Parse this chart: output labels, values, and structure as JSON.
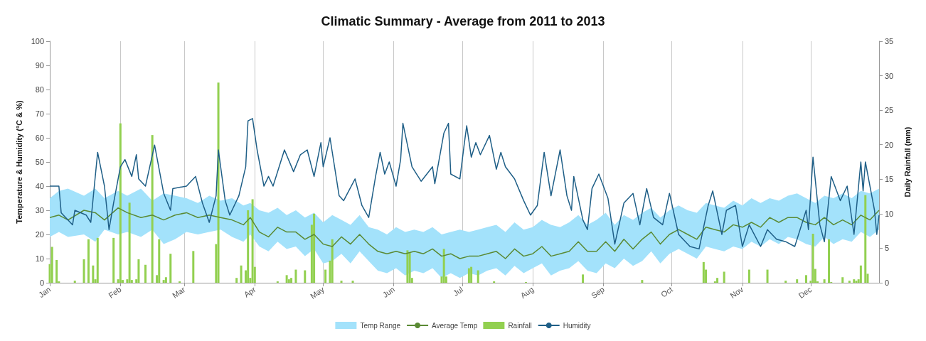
{
  "chart_data": {
    "type": "line",
    "title": "Climatic Summary - Average from 2011 to 2013",
    "ylabel": "Temperature & Humidity (°C & %)",
    "y2label": "Daily Rainfall (mm)",
    "xlim": [
      "--01-01",
      "--12-31"
    ],
    "xticks": [
      {
        "value": "--01-01",
        "label": "Jan"
      },
      {
        "value": "--02-01",
        "label": "Feb"
      },
      {
        "value": "--03-01",
        "label": "Mar"
      },
      {
        "value": "--04-01",
        "label": "Apr"
      },
      {
        "value": "--05-01",
        "label": "May"
      },
      {
        "value": "--06-01",
        "label": "Jun"
      },
      {
        "value": "--07-01",
        "label": "Jul"
      },
      {
        "value": "--08-01",
        "label": "Aug"
      },
      {
        "value": "--09-01",
        "label": "Sep"
      },
      {
        "value": "--10-01",
        "label": "Oct"
      },
      {
        "value": "--11-01",
        "label": "Nov"
      },
      {
        "value": "--12-01",
        "label": "Dec"
      }
    ],
    "ylim": [
      0,
      100
    ],
    "yticks": [
      0,
      10,
      20,
      30,
      40,
      50,
      60,
      70,
      80,
      90,
      100
    ],
    "y2lim": [
      0,
      35
    ],
    "y2ticks": [
      0,
      5,
      10,
      15,
      20,
      25,
      30,
      35
    ],
    "grid": "x",
    "legend": "bottom",
    "line_style": "solid",
    "marker": "none",
    "series": [
      {
        "name": "Temp Range",
        "type": "area",
        "color": "#a3e2fb"
      },
      {
        "name": "Average Temp",
        "color": "#5a8a34",
        "x": [
          "--01-01",
          "--01-05",
          "--01-09",
          "--01-16",
          "--01-21",
          "--01-25",
          "--01-31",
          "--02-04",
          "--02-10",
          "--02-15",
          "--02-20",
          "--02-25",
          "--03-02",
          "--03-07",
          "--03-12",
          "--03-17",
          "--03-22",
          "--03-27",
          "--03-30",
          "--04-03",
          "--04-07",
          "--04-11",
          "--04-15",
          "--04-19",
          "--04-23",
          "--04-27",
          "--05-01",
          "--05-05",
          "--05-09",
          "--05-13",
          "--05-17",
          "--05-21",
          "--05-25",
          "--05-29",
          "--06-02",
          "--06-06",
          "--06-10",
          "--06-14",
          "--06-18",
          "--06-22",
          "--06-26",
          "--06-30",
          "--07-04",
          "--07-08",
          "--07-12",
          "--07-16",
          "--07-20",
          "--07-24",
          "--07-28",
          "--08-01",
          "--08-05",
          "--08-09",
          "--08-13",
          "--08-17",
          "--08-21",
          "--08-25",
          "--08-29",
          "--09-02",
          "--09-06",
          "--09-10",
          "--09-14",
          "--09-18",
          "--09-22",
          "--09-26",
          "--09-30",
          "--10-04",
          "--10-08",
          "--10-12",
          "--10-16",
          "--10-20",
          "--10-24",
          "--10-28",
          "--11-01",
          "--11-05",
          "--11-09",
          "--11-13",
          "--11-17",
          "--11-21",
          "--11-25",
          "--11-29",
          "--12-03",
          "--12-07",
          "--12-11",
          "--12-15",
          "--12-19",
          "--12-23",
          "--12-27",
          "--12-31"
        ],
        "lower": [
          19,
          21,
          19,
          20,
          17,
          22,
          20,
          21,
          19,
          22,
          16,
          18,
          21,
          20,
          21,
          22,
          19,
          17,
          20,
          15,
          13,
          17,
          14,
          15,
          11,
          14,
          8,
          9,
          12,
          8,
          13,
          9,
          5,
          4,
          6,
          3,
          5,
          4,
          6,
          2,
          4,
          2,
          4,
          3,
          5,
          6,
          3,
          7,
          4,
          6,
          8,
          3,
          5,
          6,
          9,
          5,
          4,
          8,
          6,
          10,
          7,
          9,
          13,
          8,
          12,
          14,
          12,
          10,
          15,
          14,
          13,
          15,
          14,
          17,
          15,
          18,
          16,
          19,
          18,
          16,
          15,
          19,
          16,
          18,
          17,
          21,
          19,
          22
        ],
        "upper": [
          35,
          38,
          39,
          36,
          39,
          35,
          38,
          36,
          39,
          34,
          37,
          36,
          35,
          33,
          36,
          34,
          35,
          32,
          33,
          30,
          29,
          31,
          28,
          30,
          27,
          29,
          25,
          28,
          26,
          24,
          28,
          23,
          22,
          20,
          23,
          21,
          22,
          21,
          23,
          20,
          21,
          22,
          21,
          22,
          23,
          24,
          21,
          25,
          22,
          23,
          26,
          24,
          23,
          25,
          28,
          24,
          26,
          29,
          24,
          28,
          26,
          29,
          31,
          27,
          30,
          32,
          30,
          29,
          33,
          32,
          31,
          34,
          32,
          35,
          33,
          35,
          34,
          36,
          37,
          35,
          33,
          36,
          35,
          37,
          35,
          38,
          37,
          39
        ],
        "values": [
          27,
          28,
          26,
          30,
          29,
          26,
          31,
          29,
          27,
          28,
          26,
          28,
          29,
          27,
          28,
          27,
          26,
          24,
          27,
          21,
          19,
          23,
          21,
          21,
          18,
          20,
          16,
          15,
          19,
          16,
          20,
          16,
          13,
          12,
          13,
          12,
          13,
          12,
          14,
          11,
          12,
          10,
          11,
          11,
          12,
          13,
          10,
          14,
          11,
          12,
          15,
          11,
          12,
          13,
          17,
          13,
          13,
          17,
          13,
          18,
          14,
          18,
          21,
          16,
          20,
          22,
          20,
          18,
          23,
          22,
          21,
          24,
          23,
          25,
          23,
          27,
          25,
          27,
          27,
          25,
          24,
          27,
          24,
          26,
          24,
          28,
          26,
          30
        ]
      },
      {
        "name": "Rainfall",
        "type": "bar",
        "axis": "y2",
        "color": "#92d050",
        "x": [
          "--01-01",
          "--01-02",
          "--01-04",
          "--01-05",
          "--01-12",
          "--01-16",
          "--01-18",
          "--01-20",
          "--01-21",
          "--01-22",
          "--01-29",
          "--01-31",
          "--02-01",
          "--02-02",
          "--02-04",
          "--02-05",
          "--02-06",
          "--02-08",
          "--02-09",
          "--02-12",
          "--02-15",
          "--02-17",
          "--02-18",
          "--02-20",
          "--02-21",
          "--02-23",
          "--02-27",
          "--03-05",
          "--03-15",
          "--03-16",
          "--03-24",
          "--03-26",
          "--03-28",
          "--03-29",
          "--03-30",
          "--03-31",
          "--04-01",
          "--04-11",
          "--04-15",
          "--04-16",
          "--04-17",
          "--04-19",
          "--04-23",
          "--04-26",
          "--04-27",
          "--05-02",
          "--05-04",
          "--05-05",
          "--05-09",
          "--05-14",
          "--06-07",
          "--06-08",
          "--06-09",
          "--06-22",
          "--06-23",
          "--06-24",
          "--07-04",
          "--07-05",
          "--07-08",
          "--07-15",
          "--07-29",
          "--08-23",
          "--09-18",
          "--10-15",
          "--10-16",
          "--10-20",
          "--10-21",
          "--10-24",
          "--11-04",
          "--11-12",
          "--11-20",
          "--11-25",
          "--11-29",
          "--12-01",
          "--12-02",
          "--12-03",
          "--12-04",
          "--12-07",
          "--12-09",
          "--12-10",
          "--12-15",
          "--12-18",
          "--12-20",
          "--12-21",
          "--12-22",
          "--12-23",
          "--12-25",
          "--12-26"
        ],
        "values": [
          2.7,
          5.2,
          3.3,
          0.2,
          0.3,
          3.4,
          6.3,
          2.5,
          0.5,
          6.5,
          6.5,
          0.5,
          23.1,
          0.4,
          0.5,
          11.6,
          0.4,
          0.5,
          3.4,
          2.6,
          21.4,
          1.1,
          6.3,
          0.4,
          0.8,
          4.2,
          0.2,
          4.6,
          5.6,
          29,
          0.7,
          2.5,
          1.8,
          10.5,
          0.7,
          12.1,
          2.3,
          0.2,
          1.1,
          0.5,
          0.7,
          1.9,
          1.8,
          8.4,
          10,
          1.9,
          3.2,
          6.3,
          0.3,
          0.3,
          4.7,
          4.4,
          0.7,
          0.9,
          4.9,
          0.9,
          2.1,
          2.3,
          1.8,
          0.2,
          0.1,
          1.2,
          0.4,
          3,
          1.9,
          0.2,
          0.7,
          1.6,
          1.9,
          1.9,
          0.3,
          0.5,
          1.1,
          0.3,
          7.1,
          2,
          0.2,
          0.5,
          6.3,
          0.1,
          0.8,
          0.3,
          0.5,
          0.3,
          0.5,
          2.5,
          12.7,
          1.3
        ]
      },
      {
        "name": "Humidity",
        "type": "line",
        "color": "#1f5f87",
        "x": [
          "--01-01",
          "--01-05",
          "--01-06",
          "--01-11",
          "--01-12",
          "--01-17",
          "--01-19",
          "--01-22",
          "--01-25",
          "--01-27",
          "--01-29",
          "--02-01",
          "--02-03",
          "--02-06",
          "--02-08",
          "--02-09",
          "--02-12",
          "--02-16",
          "--02-20",
          "--02-23",
          "--02-24",
          "--03-02",
          "--03-06",
          "--03-09",
          "--03-12",
          "--03-15",
          "--03-16",
          "--03-19",
          "--03-21",
          "--03-25",
          "--03-28",
          "--03-29",
          "--03-31",
          "--04-02",
          "--04-05",
          "--04-07",
          "--04-09",
          "--04-14",
          "--04-18",
          "--04-21",
          "--04-24",
          "--04-27",
          "--04-30",
          "--05-01",
          "--05-04",
          "--05-08",
          "--05-10",
          "--05-15",
          "--05-18",
          "--05-21",
          "--05-24",
          "--05-26",
          "--05-28",
          "--05-30",
          "--06-02",
          "--06-04",
          "--06-05",
          "--06-09",
          "--06-13",
          "--06-18",
          "--06-19",
          "--06-23",
          "--06-25",
          "--06-26",
          "--06-30",
          "--07-02",
          "--07-03",
          "--07-05",
          "--07-07",
          "--07-09",
          "--07-13",
          "--07-16",
          "--07-18",
          "--07-20",
          "--07-24",
          "--07-28",
          "--07-31",
          "--08-03",
          "--08-06",
          "--08-09",
          "--08-13",
          "--08-16",
          "--08-18",
          "--08-19",
          "--08-23",
          "--08-25",
          "--08-27",
          "--08-30",
          "--09-03",
          "--09-06",
          "--09-10",
          "--09-14",
          "--09-17",
          "--09-20",
          "--09-23",
          "--09-27",
          "--09-30",
          "--10-04",
          "--10-09",
          "--10-13",
          "--10-17",
          "--10-19",
          "--10-23",
          "--10-25",
          "--10-29",
          "--11-01",
          "--11-04",
          "--11-09",
          "--11-12",
          "--11-16",
          "--11-20",
          "--11-24",
          "--11-29",
          "--11-30",
          "--12-02",
          "--12-05",
          "--12-07",
          "--12-10",
          "--12-14",
          "--12-17",
          "--12-20",
          "--12-23",
          "--12-24",
          "--12-25",
          "--12-29",
          "--12-30",
          "--12-31"
        ],
        "values": [
          40,
          40,
          29,
          24,
          30,
          28,
          25,
          54,
          40,
          22,
          33,
          48,
          51,
          44,
          53,
          43,
          40,
          57,
          37,
          30,
          39,
          40,
          44,
          33,
          25,
          36,
          55,
          34,
          28,
          36,
          48,
          67,
          68,
          55,
          40,
          44,
          40,
          55,
          46,
          53,
          55,
          44,
          58,
          48,
          60,
          36,
          34,
          43,
          32,
          27,
          44,
          54,
          45,
          50,
          40,
          51,
          66,
          48,
          42,
          48,
          41,
          62,
          66,
          45,
          43,
          58,
          65,
          52,
          58,
          53,
          61,
          47,
          54,
          48,
          43,
          34,
          28,
          32,
          54,
          36,
          55,
          36,
          30,
          44,
          26,
          22,
          39,
          45,
          35,
          16,
          33,
          37,
          24,
          39,
          27,
          24,
          37,
          20,
          15,
          14,
          32,
          38,
          20,
          30,
          32,
          15,
          24,
          15,
          22,
          18,
          17,
          15,
          30,
          22,
          52,
          24,
          17,
          44,
          34,
          40,
          20,
          50,
          38,
          50,
          30,
          20,
          28
        ]
      }
    ]
  }
}
